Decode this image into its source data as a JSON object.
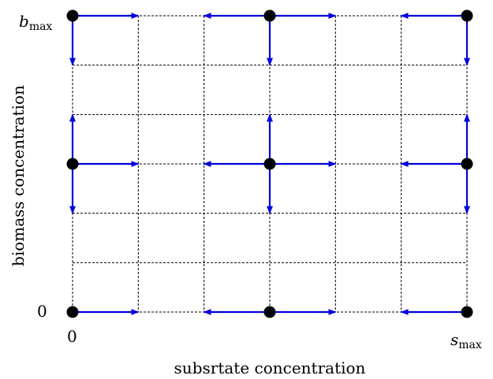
{
  "labels": {
    "y_top_base": "b",
    "y_top_sub": "max",
    "y_zero": "0",
    "x_zero": "0",
    "x_right_base": "s",
    "x_right_sub": "max",
    "y_axis_title": "biomass concentration",
    "x_axis_title": "subsrtate concentration"
  },
  "colors": {
    "arrow": "#0000dd",
    "node": "#000000",
    "grid": "#000000"
  },
  "grid": {
    "columns": 6,
    "rows": 6,
    "line_style": "dashed"
  },
  "nodes": [
    {
      "col": 0,
      "row": 0,
      "arrows": [
        "right",
        "down"
      ]
    },
    {
      "col": 3,
      "row": 0,
      "arrows": [
        "left",
        "right",
        "down"
      ]
    },
    {
      "col": 6,
      "row": 0,
      "arrows": [
        "left",
        "down"
      ]
    },
    {
      "col": 0,
      "row": 3,
      "arrows": [
        "up",
        "right",
        "down"
      ]
    },
    {
      "col": 3,
      "row": 3,
      "arrows": [
        "up",
        "left",
        "right",
        "down"
      ]
    },
    {
      "col": 6,
      "row": 3,
      "arrows": [
        "up",
        "left",
        "down"
      ]
    },
    {
      "col": 0,
      "row": 6,
      "arrows": [
        "right"
      ]
    },
    {
      "col": 3,
      "row": 6,
      "arrows": [
        "left",
        "right"
      ]
    },
    {
      "col": 6,
      "row": 6,
      "arrows": [
        "left"
      ]
    }
  ]
}
